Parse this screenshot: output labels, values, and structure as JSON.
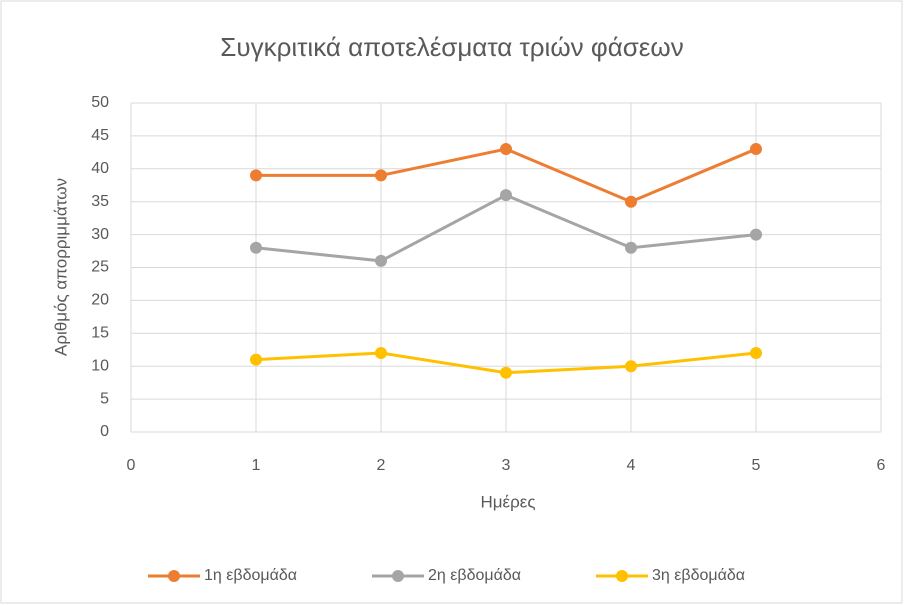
{
  "chart_data": {
    "type": "line",
    "title": "Συγκριτικά αποτελέσματα τριών φάσεων",
    "xlabel": "Ημέρες",
    "ylabel": "Αριθμός απορριμμάτων",
    "x": [
      1,
      2,
      3,
      4,
      5
    ],
    "series": [
      {
        "name": "1η εβδομάδα",
        "color": "#ed7d31",
        "values": [
          39,
          39,
          43,
          35,
          43
        ]
      },
      {
        "name": "2η εβδομάδα",
        "color": "#a5a5a5",
        "values": [
          28,
          26,
          36,
          28,
          30
        ]
      },
      {
        "name": "3η εβδομάδα",
        "color": "#ffc000",
        "values": [
          11,
          12,
          9,
          10,
          12
        ]
      }
    ],
    "xlim": [
      0,
      6
    ],
    "xticks": [
      0,
      1,
      2,
      3,
      4,
      5,
      6
    ],
    "ylim": [
      0,
      50
    ],
    "yticks": [
      0,
      5,
      10,
      15,
      20,
      25,
      30,
      35,
      40,
      45,
      50
    ],
    "grid": true,
    "legend": "bottom"
  }
}
